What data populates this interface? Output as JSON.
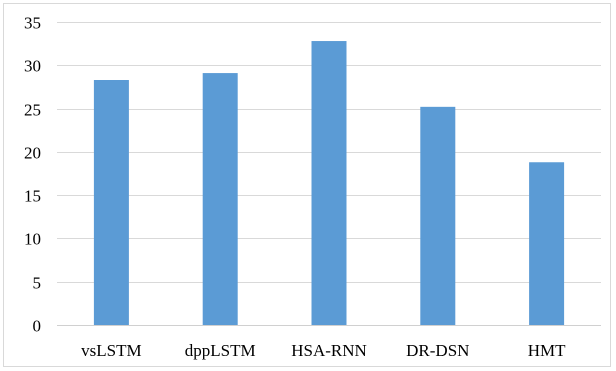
{
  "chart_data": {
    "type": "bar",
    "title": "",
    "xlabel": "",
    "ylabel": "",
    "categories": [
      "vsLSTM",
      "dppLSTM",
      "HSA-RNN",
      "DR-DSN",
      "HMT"
    ],
    "values": [
      28.3,
      29.1,
      32.8,
      25.2,
      18.8
    ],
    "ylim": [
      0,
      35
    ],
    "yticks": [
      0,
      5,
      10,
      15,
      20,
      25,
      30,
      35
    ],
    "ytick_labels": [
      "0",
      "5",
      "10",
      "15",
      "20",
      "25",
      "30",
      "35"
    ],
    "grid": true,
    "legend": "none",
    "bar_color": "#5b9bd5",
    "grid_color": "#d9d9d9"
  }
}
